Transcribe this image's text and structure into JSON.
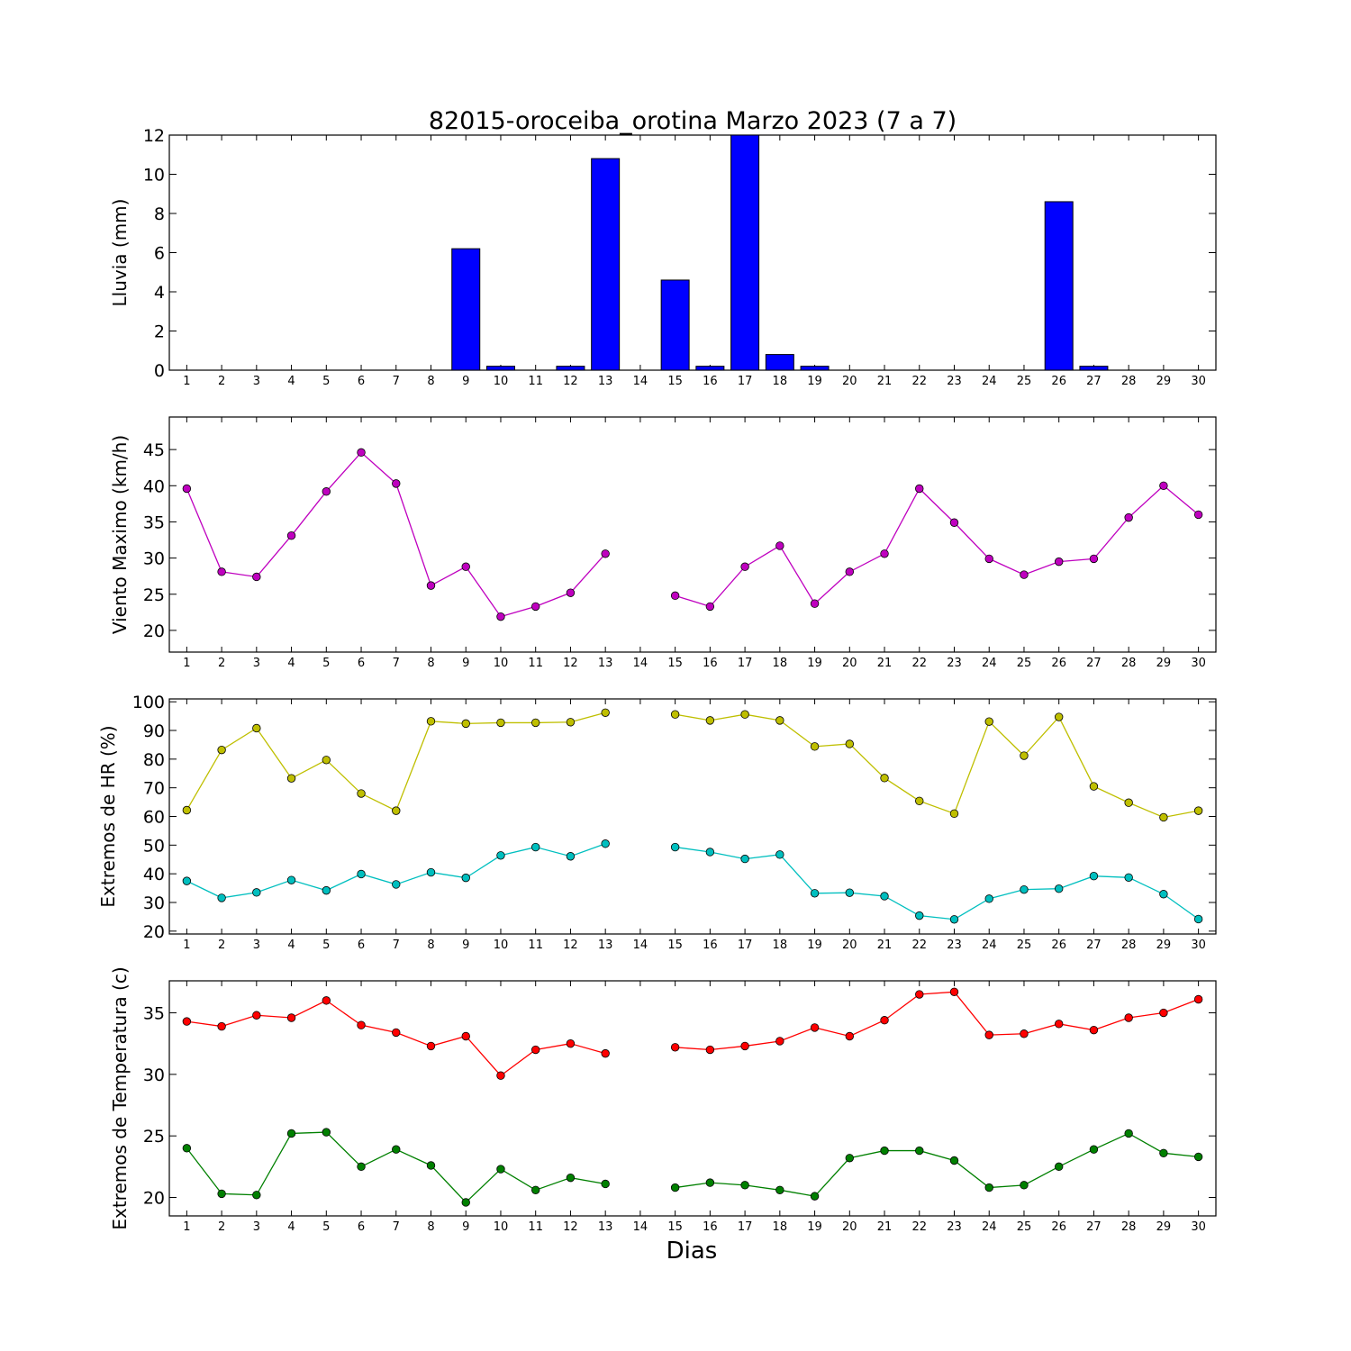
{
  "title": "82015-oroceiba_orotina Marzo 2023  (7 a 7)",
  "xlabel": "Dias",
  "chart_data": [
    {
      "type": "bar",
      "ylabel": "Lluvia (mm)",
      "ylim": [
        0,
        12
      ],
      "yticks": [
        0,
        2,
        4,
        6,
        8,
        10,
        12
      ],
      "xlim": [
        0.5,
        30.5
      ],
      "categories": [
        1,
        2,
        3,
        4,
        5,
        6,
        7,
        8,
        9,
        10,
        11,
        12,
        13,
        14,
        15,
        16,
        17,
        18,
        19,
        20,
        21,
        22,
        23,
        24,
        25,
        26,
        27,
        28,
        29,
        30
      ],
      "values": [
        0,
        0,
        0,
        0,
        0,
        0,
        0,
        0,
        6.2,
        0.2,
        0,
        0.2,
        10.8,
        0,
        4.6,
        0.2,
        12.0,
        0.8,
        0.2,
        0,
        0,
        0,
        0,
        0,
        0,
        8.6,
        0.2,
        0,
        0,
        0
      ],
      "color": "#0000ff"
    },
    {
      "type": "line",
      "ylabel": "Viento Maximo (km/h)",
      "ylim": [
        17,
        49.5
      ],
      "yticks": [
        20,
        25,
        30,
        35,
        40,
        45
      ],
      "xlim": [
        0.5,
        30.5
      ],
      "x": [
        1,
        2,
        3,
        4,
        5,
        6,
        7,
        8,
        9,
        10,
        11,
        12,
        13,
        14,
        15,
        16,
        17,
        18,
        19,
        20,
        21,
        22,
        23,
        24,
        25,
        26,
        27,
        28,
        29,
        30
      ],
      "series": [
        {
          "color": "#bf00bf",
          "values": [
            39.6,
            28.1,
            27.4,
            33.1,
            39.2,
            44.6,
            40.3,
            26.2,
            28.8,
            21.9,
            23.3,
            25.2,
            30.6,
            null,
            24.8,
            23.3,
            28.8,
            31.7,
            23.7,
            28.1,
            30.6,
            39.6,
            34.9,
            29.9,
            27.7,
            29.5,
            29.9,
            35.6,
            40.0,
            36.0
          ]
        }
      ]
    },
    {
      "type": "line",
      "ylabel": "Extremos de HR (%)",
      "ylim": [
        19,
        101
      ],
      "yticks": [
        20,
        30,
        40,
        50,
        60,
        70,
        80,
        90,
        100
      ],
      "xlim": [
        0.5,
        30.5
      ],
      "x": [
        1,
        2,
        3,
        4,
        5,
        6,
        7,
        8,
        9,
        10,
        11,
        12,
        13,
        14,
        15,
        16,
        17,
        18,
        19,
        20,
        21,
        22,
        23,
        24,
        25,
        26,
        27,
        28,
        29,
        30
      ],
      "series": [
        {
          "color": "#bfbf00",
          "values": [
            62.2,
            83.2,
            90.8,
            73.3,
            79.7,
            68.0,
            62.0,
            93.2,
            92.4,
            92.7,
            92.7,
            92.9,
            96.2,
            null,
            95.6,
            93.5,
            95.6,
            93.5,
            84.4,
            85.3,
            73.4,
            65.4,
            61.0,
            93.1,
            81.2,
            94.7,
            70.5,
            64.8,
            59.7,
            62.0
          ]
        },
        {
          "color": "#00bfbf",
          "values": [
            37.5,
            31.6,
            33.5,
            37.8,
            34.2,
            39.9,
            36.3,
            40.5,
            38.6,
            46.4,
            49.3,
            46.1,
            50.5,
            null,
            49.3,
            47.6,
            45.2,
            46.7,
            33.2,
            33.4,
            32.2,
            25.4,
            24.1,
            31.3,
            34.5,
            34.8,
            39.2,
            38.7,
            32.9,
            24.2
          ]
        }
      ]
    },
    {
      "type": "line",
      "ylabel": "Extremos de Temperatura (c)",
      "ylim": [
        18.5,
        37.6
      ],
      "yticks": [
        20,
        25,
        30,
        35
      ],
      "xlim": [
        0.5,
        30.5
      ],
      "x": [
        1,
        2,
        3,
        4,
        5,
        6,
        7,
        8,
        9,
        10,
        11,
        12,
        13,
        14,
        15,
        16,
        17,
        18,
        19,
        20,
        21,
        22,
        23,
        24,
        25,
        26,
        27,
        28,
        29,
        30
      ],
      "series": [
        {
          "color": "#ff0000",
          "values": [
            34.3,
            33.9,
            34.8,
            34.6,
            36.0,
            34.0,
            33.4,
            32.3,
            33.1,
            29.9,
            32.0,
            32.5,
            31.7,
            null,
            32.2,
            32.0,
            32.3,
            32.7,
            33.8,
            33.1,
            34.4,
            36.5,
            36.7,
            33.2,
            33.3,
            34.1,
            33.6,
            34.6,
            35.0,
            36.1
          ]
        },
        {
          "color": "#008000",
          "values": [
            24.0,
            20.3,
            20.2,
            25.2,
            25.3,
            22.5,
            23.9,
            22.6,
            19.6,
            22.3,
            20.6,
            21.6,
            21.1,
            null,
            20.8,
            21.2,
            21.0,
            20.6,
            20.1,
            23.2,
            23.8,
            23.8,
            23.0,
            20.8,
            21.0,
            22.5,
            23.9,
            25.2,
            23.6,
            23.3
          ]
        }
      ]
    }
  ]
}
